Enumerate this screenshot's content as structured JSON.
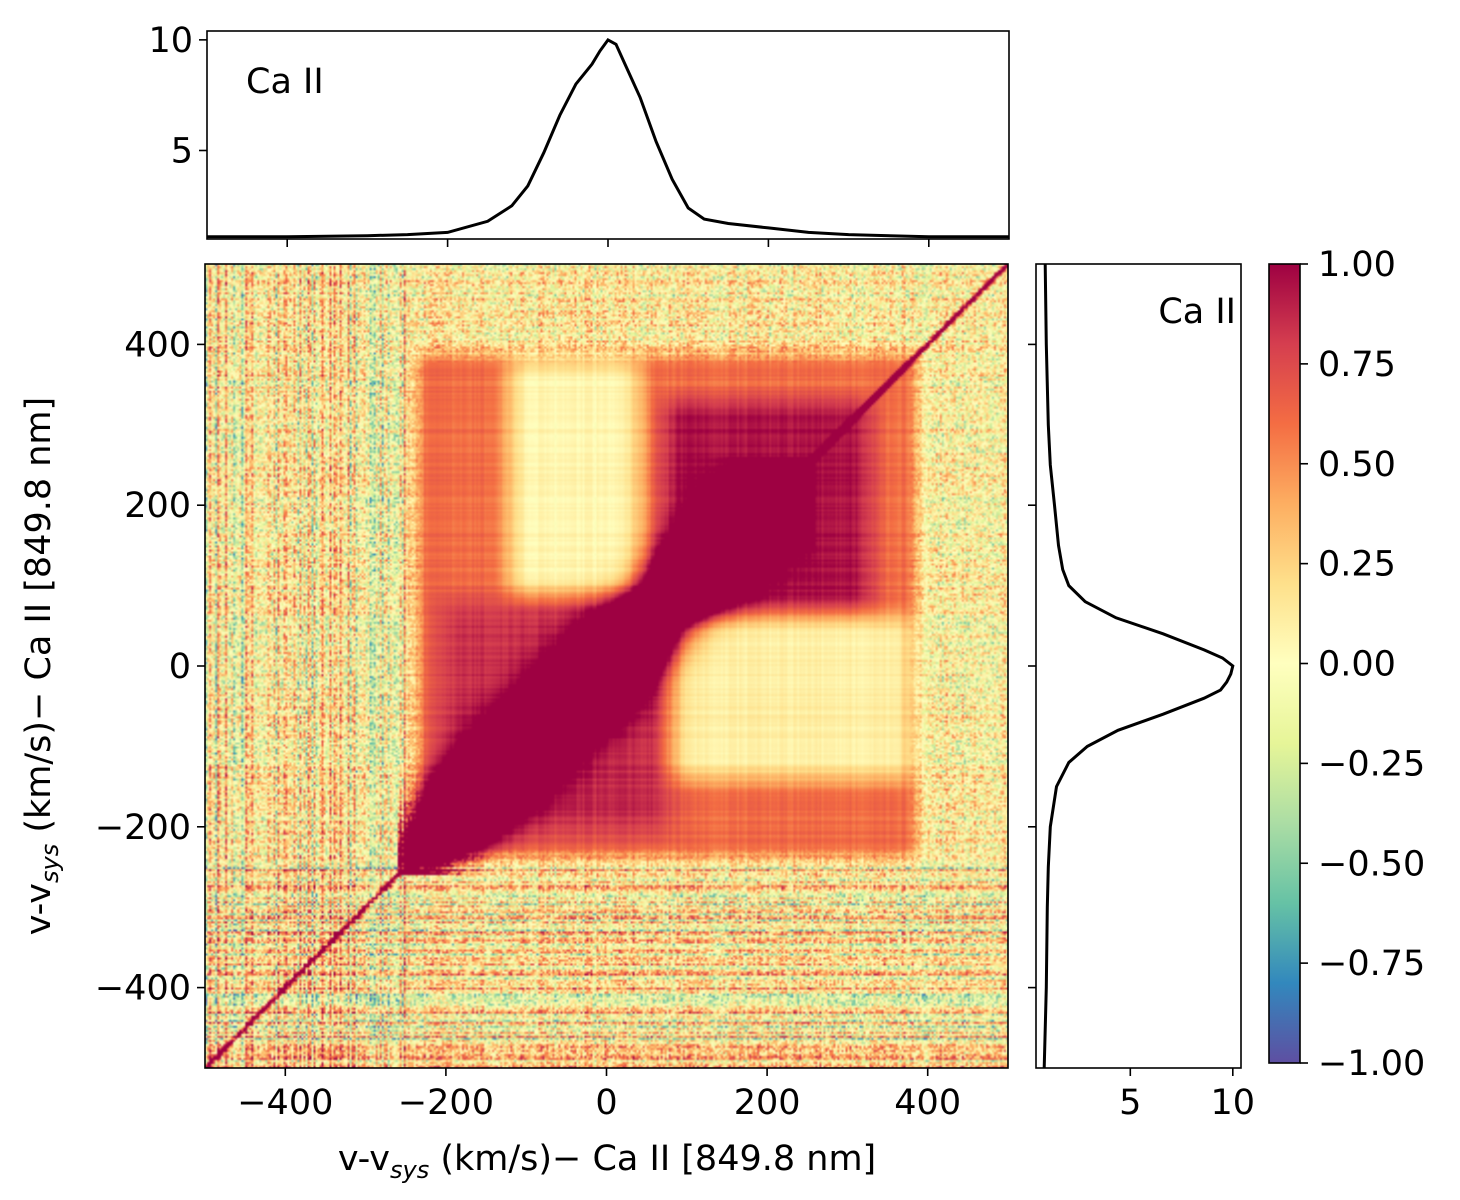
{
  "chart_data": [
    {
      "id": "correlation_map",
      "type": "heatmap",
      "title": "",
      "xlabel": {
        "main": "v-v",
        "sub": "sys",
        "rest": " (km/s)− Ca II [849.8 nm]"
      },
      "ylabel": {
        "main": "v-v",
        "sub": "sys",
        "rest": " (km/s)− Ca II [849.8 nm]"
      },
      "xlim": [
        -500,
        500
      ],
      "ylim": [
        -500,
        500
      ],
      "xticks": [
        -400,
        -200,
        0,
        200,
        400
      ],
      "xtick_labels": [
        "−400",
        "−200",
        "0",
        "200",
        "400"
      ],
      "yticks": [
        -400,
        -200,
        0,
        200,
        400
      ],
      "ytick_labels": [
        "−400",
        "−200",
        "0",
        "200",
        "400"
      ],
      "colormap": "Spectral_r",
      "value_range": [
        -1.0,
        1.0
      ],
      "description_regions": {
        "diagonal_correlation": 1.0,
        "red_block_upper_right": {
          "x": [
            70,
            320
          ],
          "y": [
            70,
            320
          ],
          "value": 0.95
        },
        "pale_column": {
          "x": [
            -120,
            40
          ],
          "y": [
            90,
            380
          ],
          "value": 0.15
        },
        "pale_row": {
          "x": [
            80,
            380
          ],
          "y": [
            -140,
            60
          ],
          "value": 0.2
        },
        "noisy_wings": "|v| > 250"
      }
    },
    {
      "id": "top_profile",
      "type": "line",
      "annotation": "Ca II",
      "xlim": [
        -500,
        500
      ],
      "ylim": [
        1.0,
        10.4
      ],
      "yticks": [
        5,
        10
      ],
      "ytick_labels": [
        "5",
        "10"
      ],
      "x": [
        -500,
        -400,
        -300,
        -250,
        -200,
        -150,
        -120,
        -100,
        -80,
        -60,
        -40,
        -20,
        -10,
        0,
        10,
        20,
        40,
        60,
        80,
        100,
        120,
        150,
        200,
        250,
        300,
        400,
        500
      ],
      "y": [
        1.1,
        1.1,
        1.15,
        1.2,
        1.3,
        1.8,
        2.5,
        3.4,
        4.9,
        6.6,
        8.0,
        8.9,
        9.5,
        10.0,
        9.8,
        9.0,
        7.4,
        5.4,
        3.7,
        2.4,
        1.9,
        1.7,
        1.5,
        1.3,
        1.2,
        1.1,
        1.1
      ]
    },
    {
      "id": "side_profile",
      "type": "line",
      "annotation": "Ca II",
      "orientation": "vertical",
      "xlim": [
        0.4,
        10.4
      ],
      "ylim": [
        -500,
        500
      ],
      "xticks": [
        5,
        10
      ],
      "xtick_labels": [
        "5",
        "10"
      ],
      "y": [
        -500,
        -400,
        -300,
        -250,
        -200,
        -150,
        -120,
        -100,
        -80,
        -60,
        -40,
        -30,
        -20,
        -10,
        0,
        10,
        20,
        40,
        60,
        80,
        100,
        120,
        150,
        200,
        250,
        300,
        400,
        500
      ],
      "x": [
        0.8,
        0.9,
        0.95,
        1.0,
        1.1,
        1.4,
        2.0,
        2.9,
        4.4,
        6.6,
        8.6,
        9.4,
        9.7,
        9.9,
        10.0,
        9.5,
        8.6,
        6.6,
        4.3,
        2.8,
        2.0,
        1.7,
        1.5,
        1.3,
        1.1,
        1.0,
        0.9,
        0.85
      ]
    },
    {
      "id": "colorbar",
      "type": "colorbar",
      "range": [
        -1.0,
        1.0
      ],
      "ticks": [
        1.0,
        0.75,
        0.5,
        0.25,
        0.0,
        -0.25,
        -0.5,
        -0.75,
        -1.0
      ],
      "tick_labels": [
        "1.00",
        "0.75",
        "0.50",
        "0.25",
        "0.00",
        "−0.25",
        "−0.50",
        "−0.75",
        "−1.00"
      ]
    }
  ]
}
